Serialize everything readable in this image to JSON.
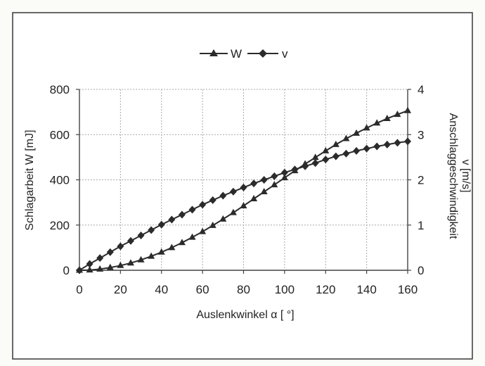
{
  "chart_data": {
    "type": "line",
    "xlabel": "Auslenkwinkel α [ °]",
    "ylabel": "Schlagarbeit W [mJ]",
    "y2label_lines": [
      "Anschlaggeschwindigkeit",
      "v [m/s]"
    ],
    "xlim": [
      0,
      160
    ],
    "ylim": [
      0,
      800
    ],
    "y2lim": [
      0,
      4
    ],
    "x_ticks": [
      0,
      20,
      40,
      60,
      80,
      100,
      120,
      140,
      160
    ],
    "y_ticks": [
      0,
      200,
      400,
      600,
      800
    ],
    "y2_ticks": [
      0,
      1,
      2,
      3,
      4
    ],
    "grid": true,
    "legend_position": "top-center",
    "colors": {
      "line": "#2b2b2b",
      "grid": "#a8a8a8",
      "frame": "#444444"
    },
    "x": [
      0,
      5,
      10,
      15,
      20,
      25,
      30,
      35,
      40,
      45,
      50,
      55,
      60,
      65,
      70,
      75,
      80,
      85,
      90,
      95,
      100,
      105,
      110,
      115,
      120,
      125,
      130,
      135,
      140,
      145,
      150,
      155,
      160
    ],
    "series": [
      {
        "name": "W",
        "axis": "left",
        "marker": "triangle",
        "values": [
          0,
          1,
          5,
          12,
          21,
          32,
          46,
          62,
          80,
          100,
          122,
          146,
          171,
          198,
          226,
          255,
          285,
          316,
          347,
          378,
          409,
          440,
          470,
          499,
          528,
          556,
          582,
          606,
          629,
          651,
          671,
          689,
          706
        ]
      },
      {
        "name": "v",
        "axis": "right",
        "marker": "diamond",
        "values": [
          0,
          0.14,
          0.27,
          0.4,
          0.53,
          0.65,
          0.77,
          0.89,
          1.01,
          1.12,
          1.23,
          1.34,
          1.45,
          1.55,
          1.65,
          1.74,
          1.83,
          1.92,
          2.0,
          2.08,
          2.16,
          2.23,
          2.3,
          2.37,
          2.45,
          2.52,
          2.58,
          2.64,
          2.69,
          2.74,
          2.78,
          2.82,
          2.85
        ]
      }
    ]
  }
}
